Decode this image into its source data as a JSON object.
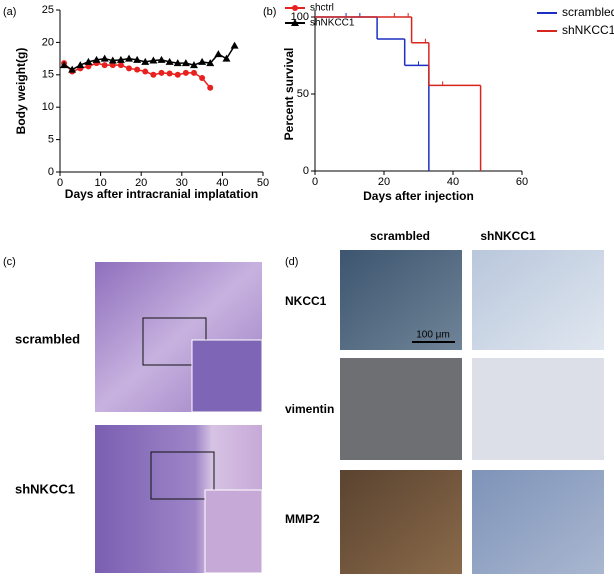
{
  "chart_data": [
    {
      "type": "line",
      "panel_label": "(a)",
      "xlabel": "Days after intracranial implatation",
      "ylabel": "Body weight(g)",
      "xlim": [
        0,
        50
      ],
      "xticks": [
        0,
        10,
        20,
        30,
        40,
        50
      ],
      "ylim": [
        0,
        25
      ],
      "yticks": [
        0,
        5,
        10,
        15,
        20,
        25
      ],
      "series": [
        {
          "name": "shctrl",
          "color": "#e8201e",
          "marker": "circle",
          "x": [
            1,
            3,
            5,
            7,
            9,
            11,
            13,
            15,
            17,
            19,
            21,
            23,
            25,
            27,
            29,
            31,
            33,
            35,
            37
          ],
          "values": [
            16.8,
            15.5,
            16,
            16.3,
            16.8,
            16.5,
            16.5,
            16.5,
            16,
            15.8,
            15.5,
            15,
            15.3,
            15.2,
            15,
            15.3,
            15.3,
            14.5,
            13
          ]
        },
        {
          "name": "shNKCC1",
          "color": "#000000",
          "marker": "triangle",
          "x": [
            1,
            3,
            5,
            7,
            9,
            11,
            13,
            15,
            17,
            19,
            21,
            23,
            25,
            27,
            29,
            31,
            33,
            35,
            37,
            39,
            41,
            43
          ],
          "values": [
            16.5,
            15.8,
            16.5,
            17,
            17.3,
            17.5,
            17.2,
            17.3,
            17.5,
            17.3,
            17,
            17.2,
            17.3,
            17,
            16.8,
            16.8,
            16.5,
            17,
            16.8,
            18.2,
            17.5,
            19.5
          ]
        }
      ]
    },
    {
      "type": "step",
      "panel_label": "(b)",
      "xlabel": "Days after injection",
      "ylabel": "Percent survival",
      "xlim": [
        0,
        60
      ],
      "xticks": [
        0,
        20,
        40,
        60
      ],
      "ylim": [
        0,
        100
      ],
      "yticks": [
        0,
        50,
        100
      ],
      "series": [
        {
          "name": "scrambled",
          "color": "#1c2fc4",
          "x": [
            0,
            18,
            26,
            33
          ],
          "values": [
            100,
            85.7,
            68.6,
            0
          ],
          "censor_x": [
            9,
            13,
            30
          ]
        },
        {
          "name": "shNKCC1",
          "color": "#d8261f",
          "x": [
            0,
            28,
            33,
            48
          ],
          "values": [
            100,
            83.3,
            55.6,
            0
          ],
          "censor_x": [
            23,
            27,
            32,
            37
          ]
        }
      ]
    }
  ],
  "panel_c": {
    "label": "(c)",
    "rows": [
      "scrambled",
      "shNKCC1"
    ]
  },
  "panel_d": {
    "label": "(d)",
    "columns": [
      "scrambled",
      "shNKCC1"
    ],
    "rows": [
      "NKCC1",
      "vimentin",
      "MMP2"
    ],
    "scale_bar": "100 μm"
  }
}
